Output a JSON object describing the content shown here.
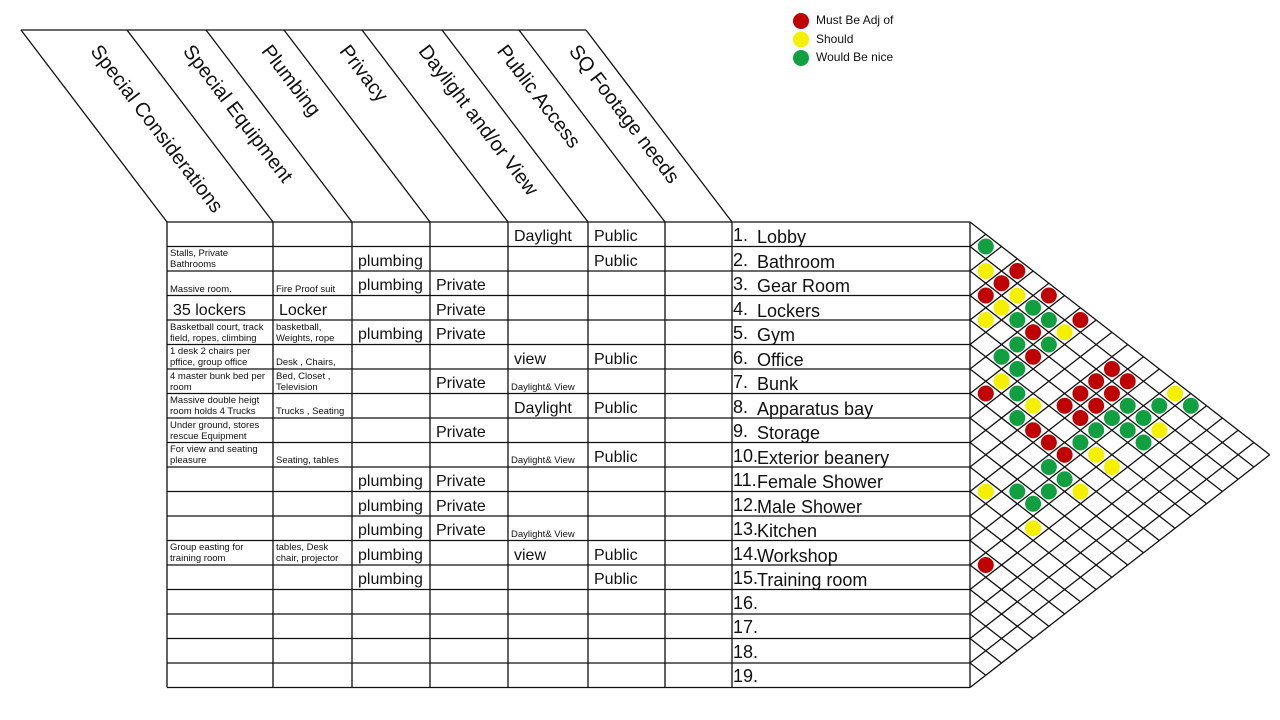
{
  "legend": [
    {
      "label": "Must Be Adj of",
      "color": "#c00000"
    },
    {
      "label": "Should",
      "color": "#f5f000"
    },
    {
      "label": "Would  Be nice",
      "color": "#10a040"
    }
  ],
  "columns": [
    "Special Considerations",
    "Special Equipment",
    "Plumbing",
    "Privacy",
    "Daylight and/or View",
    "Public Access",
    "SQ Footage needs"
  ],
  "rows": [
    {
      "num": "1.",
      "name": "Lobby",
      "cells": [
        null,
        null,
        null,
        null,
        "Daylight",
        "Public",
        null
      ]
    },
    {
      "num": "2.",
      "name": "Bathroom",
      "cells": [
        "Stalls, Private Bathrooms",
        null,
        "plumbing",
        null,
        null,
        "Public",
        null
      ]
    },
    {
      "num": "3.",
      "name": "Gear Room",
      "cells": [
        "Massive room.",
        "Fire Proof suit",
        "plumbing",
        "Private",
        null,
        null,
        null
      ]
    },
    {
      "num": "4.",
      "name": "Lockers",
      "cells": [
        "35 lockers",
        "Locker",
        null,
        "Private",
        null,
        null,
        null
      ]
    },
    {
      "num": "5.",
      "name": "Gym",
      "cells": [
        "Basketball court, track field, ropes, climbing",
        "basketball, Weights, rope",
        "plumbing",
        "Private",
        null,
        null,
        null
      ]
    },
    {
      "num": "6.",
      "name": "Office",
      "cells": [
        "1 desk 2 chairs per pffice, group office",
        "Desk , Chairs,",
        null,
        null,
        "view",
        "Public",
        null
      ]
    },
    {
      "num": "7.",
      "name": "Bunk",
      "cells": [
        "4 master bunk bed per room",
        "Bed, Closet , Television",
        null,
        "Private",
        "Daylight& View",
        null,
        null
      ]
    },
    {
      "num": "8.",
      "name": "Apparatus bay",
      "cells": [
        "Massive double heigt room holds 4 Trucks",
        "Trucks , Seating",
        null,
        null,
        "Daylight",
        "Public",
        null
      ]
    },
    {
      "num": "9.",
      "name": "Storage",
      "cells": [
        "Under ground, stores rescue Equipment",
        null,
        null,
        "Private",
        null,
        null,
        null
      ]
    },
    {
      "num": "10.",
      "name": "Exterior beanery",
      "cells": [
        "For view and seating pleasure",
        "Seating, tables",
        null,
        null,
        "Daylight& View",
        "Public",
        null
      ]
    },
    {
      "num": "11.",
      "name": "Female Shower",
      "cells": [
        null,
        null,
        "plumbing",
        "Private",
        null,
        null,
        null
      ]
    },
    {
      "num": "12.",
      "name": "Male Shower",
      "cells": [
        null,
        null,
        "plumbing",
        "Private",
        null,
        null,
        null
      ]
    },
    {
      "num": "13.",
      "name": "Kitchen",
      "cells": [
        null,
        null,
        "plumbing",
        "Private",
        "Daylight& View",
        null,
        null
      ]
    },
    {
      "num": "14.",
      "name": "Workshop",
      "cells": [
        "Group easting for training room",
        "tables, Desk chair, projector",
        "plumbing",
        null,
        "view",
        "Public",
        null
      ]
    },
    {
      "num": "15.",
      "name": "Training room",
      "cells": [
        null,
        null,
        "plumbing",
        null,
        null,
        "Public",
        null
      ]
    },
    {
      "num": "16.",
      "name": null,
      "cells": [
        null,
        null,
        null,
        null,
        null,
        null,
        null
      ]
    },
    {
      "num": "17.",
      "name": null,
      "cells": [
        null,
        null,
        null,
        null,
        null,
        null,
        null
      ]
    },
    {
      "num": "18.",
      "name": null,
      "cells": [
        null,
        null,
        null,
        null,
        null,
        null,
        null
      ]
    },
    {
      "num": "19.",
      "name": null,
      "cells": [
        null,
        null,
        null,
        null,
        null,
        null,
        null
      ]
    }
  ],
  "adjacency": [
    [
      1,
      2,
      2
    ],
    [
      2,
      3,
      1
    ],
    [
      1,
      4,
      0
    ],
    [
      3,
      4,
      0
    ],
    [
      2,
      4,
      0
    ],
    [
      2,
      5,
      1
    ],
    [
      1,
      6,
      0
    ],
    [
      4,
      5,
      1
    ],
    [
      3,
      5,
      1
    ],
    [
      3,
      6,
      2
    ],
    [
      2,
      6,
      2
    ],
    [
      2,
      7,
      2
    ],
    [
      1,
      8,
      0
    ],
    [
      3,
      7,
      0
    ],
    [
      2,
      8,
      1
    ],
    [
      5,
      7,
      2
    ],
    [
      4,
      7,
      2
    ],
    [
      4,
      8,
      0
    ],
    [
      3,
      8,
      2
    ],
    [
      5,
      8,
      2
    ],
    [
      7,
      8,
      0
    ],
    [
      6,
      8,
      1
    ],
    [
      6,
      9,
      2
    ],
    [
      6,
      10,
      1
    ],
    [
      7,
      10,
      2
    ],
    [
      7,
      11,
      0
    ],
    [
      8,
      13,
      2
    ],
    [
      7,
      12,
      0
    ],
    [
      5,
      11,
      0
    ],
    [
      7,
      13,
      0
    ],
    [
      4,
      11,
      0
    ],
    [
      6,
      13,
      2
    ],
    [
      5,
      12,
      0
    ],
    [
      3,
      11,
      0
    ],
    [
      4,
      12,
      0
    ],
    [
      5,
      13,
      2
    ],
    [
      6,
      14,
      1
    ],
    [
      2,
      11,
      0
    ],
    [
      3,
      12,
      0
    ],
    [
      4,
      13,
      2
    ],
    [
      6,
      15,
      1
    ],
    [
      2,
      12,
      0
    ],
    [
      3,
      13,
      2
    ],
    [
      4,
      14,
      2
    ],
    [
      3,
      14,
      2
    ],
    [
      4,
      15,
      2
    ],
    [
      3,
      15,
      1
    ],
    [
      2,
      14,
      2
    ],
    [
      1,
      14,
      1
    ],
    [
      1,
      15,
      2
    ],
    [
      11,
      12,
      1
    ],
    [
      10,
      13,
      2
    ],
    [
      10,
      14,
      2
    ],
    [
      9,
      14,
      2
    ],
    [
      8,
      14,
      2
    ],
    [
      8,
      15,
      1
    ],
    [
      11,
      15,
      1
    ],
    [
      14,
      15,
      0
    ]
  ]
}
